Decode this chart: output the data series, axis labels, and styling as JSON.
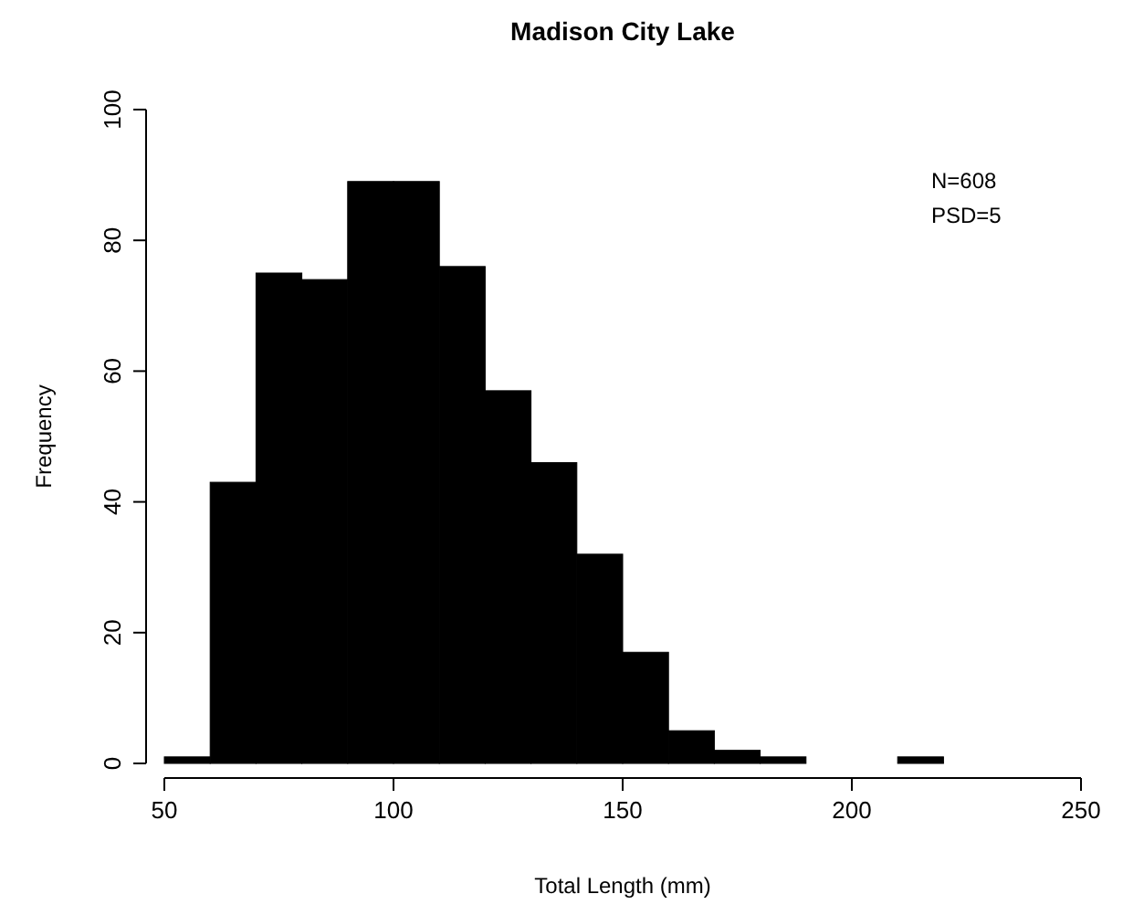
{
  "chart_data": {
    "type": "histogram",
    "title": "Madison City Lake",
    "xlabel": "Total Length (mm)",
    "ylabel": "Frequency",
    "bins": [
      50,
      60,
      70,
      80,
      90,
      100,
      110,
      120,
      130,
      140,
      150,
      160,
      170,
      180,
      190,
      200,
      210,
      220
    ],
    "values": [
      1,
      43,
      75,
      74,
      89,
      89,
      76,
      57,
      46,
      32,
      17,
      5,
      2,
      1,
      0,
      0,
      1
    ],
    "color": "#000000",
    "xlim": [
      50,
      250
    ],
    "xticks": [
      50,
      100,
      150,
      200,
      250
    ],
    "ylim": [
      0,
      100
    ],
    "yticks": [
      0,
      20,
      40,
      60,
      80,
      100
    ],
    "annotations": [
      "N=608",
      "PSD=5"
    ]
  }
}
